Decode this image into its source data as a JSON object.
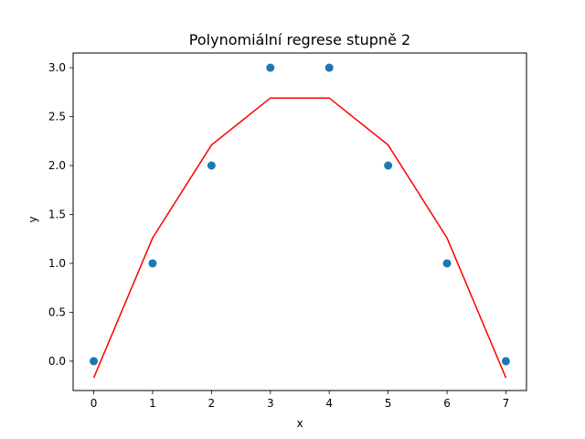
{
  "chart_data": {
    "type": "scatter",
    "title": "Polynomiální regrese stupně 2",
    "xlabel": "x",
    "ylabel": "y",
    "xlim": [
      -0.35,
      7.35
    ],
    "ylim": [
      -0.3,
      3.15
    ],
    "x_ticks": [
      "0",
      "1",
      "2",
      "3",
      "4",
      "5",
      "6",
      "7"
    ],
    "y_ticks": [
      "0.0",
      "0.5",
      "1.0",
      "1.5",
      "2.0",
      "2.5",
      "3.0"
    ],
    "grid": false,
    "series": [
      {
        "kind": "scatter",
        "color": "#1f77b4",
        "x": [
          0,
          1,
          2,
          3,
          4,
          5,
          6,
          7
        ],
        "y": [
          0,
          1,
          2,
          3,
          3,
          2,
          1,
          0
        ]
      },
      {
        "kind": "line",
        "color": "#ff0000",
        "x": [
          0,
          1,
          2,
          3,
          4,
          5,
          6,
          7
        ],
        "y": [
          -0.17,
          1.26,
          2.21,
          2.69,
          2.69,
          2.21,
          1.26,
          -0.17
        ]
      }
    ]
  }
}
